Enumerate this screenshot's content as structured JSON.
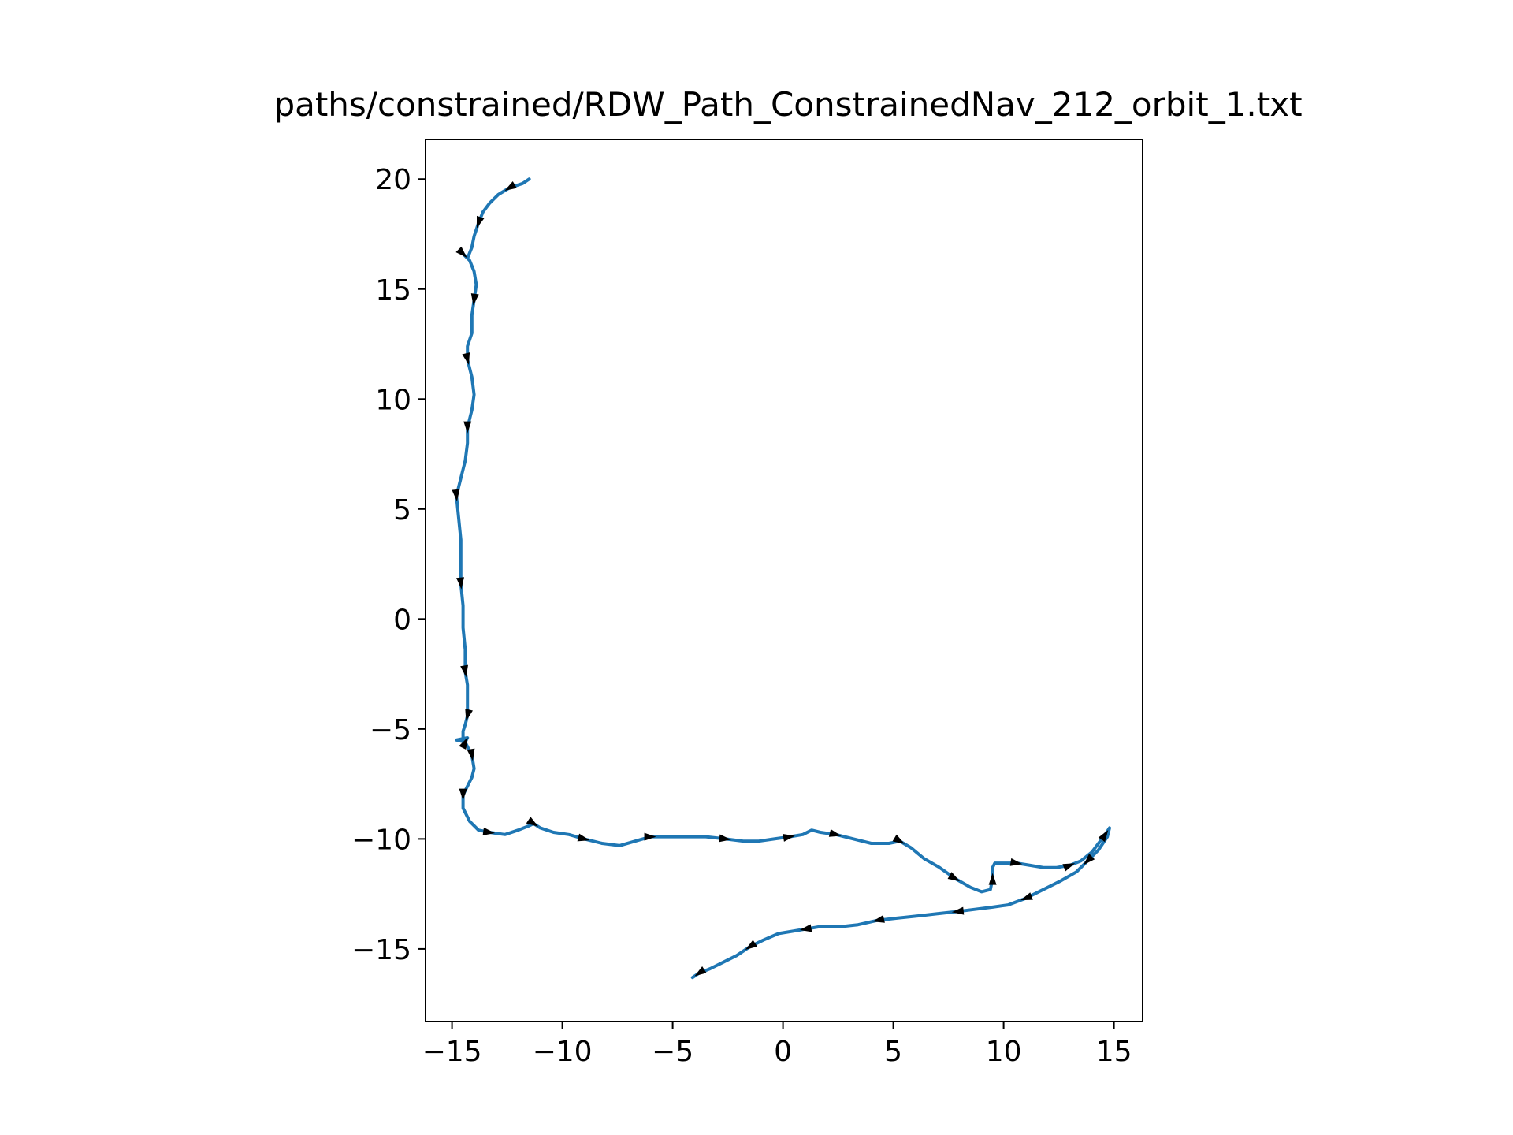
{
  "chart_data": {
    "type": "line",
    "title": "paths/constrained/RDW_Path_ConstrainedNav_212_orbit_1.txt",
    "xlabel": "",
    "ylabel": "",
    "xlim": [
      -16.2,
      16.3
    ],
    "ylim": [
      -18.3,
      21.8
    ],
    "xticks": [
      -15,
      -10,
      -5,
      0,
      5,
      10,
      15
    ],
    "yticks": [
      -15,
      -10,
      -5,
      0,
      5,
      10,
      15,
      20
    ],
    "grid": false,
    "legend": "none",
    "colors": {
      "line": "#1f77b4",
      "arrow": "#000000",
      "axes": "#000000"
    },
    "series": [
      {
        "x": [
          -11.5,
          -11.8,
          -12.4,
          -12.9,
          -13.3,
          -13.6,
          -13.8,
          -14.0,
          -14.1,
          -14.3,
          -14.5,
          -14.2,
          -14.0,
          -13.9,
          -14.0,
          -14.1,
          -14.1,
          -14.3,
          -14.3,
          -14.1,
          -14.0,
          -14.1,
          -14.3,
          -14.3,
          -14.4,
          -14.6,
          -14.8,
          -14.7,
          -14.6,
          -14.6,
          -14.6,
          -14.5,
          -14.5,
          -14.4,
          -14.4,
          -14.3,
          -14.3,
          -14.3,
          -14.3,
          -14.4,
          -14.5,
          -14.5,
          -14.4,
          -14.3,
          -14.8,
          -14.4,
          -14.1,
          -14.0,
          -14.1,
          -14.3,
          -14.5,
          -14.5,
          -14.2,
          -13.8,
          -13.3,
          -12.6,
          -12.0,
          -11.5,
          -11.3,
          -11.0,
          -10.4,
          -9.7,
          -9.0,
          -8.2,
          -7.4,
          -6.7,
          -6.0,
          -5.2,
          -4.3,
          -3.5,
          -2.6,
          -1.8,
          -1.1,
          -0.4,
          0.3,
          0.9,
          1.3,
          1.7,
          2.4,
          3.2,
          4.0,
          4.8,
          5.3,
          5.8,
          6.4,
          7.1,
          7.8,
          8.5,
          9.0,
          9.4,
          9.5,
          9.5,
          9.6,
          10.0,
          10.6,
          11.2,
          11.8,
          12.4,
          13.0,
          13.5,
          14.0,
          14.3,
          14.6,
          14.8,
          14.7,
          14.3,
          13.8,
          13.3,
          12.6,
          11.8,
          11.0,
          10.2,
          9.5,
          8.7,
          7.9,
          7.0,
          6.1,
          5.2,
          4.3,
          3.4,
          2.5,
          1.6,
          1.0,
          0.4,
          -0.2,
          -0.9,
          -1.5,
          -2.1,
          -2.7,
          -3.3,
          -3.8,
          -4.1
        ],
        "y": [
          20.0,
          19.8,
          19.6,
          19.3,
          18.9,
          18.5,
          18.0,
          17.4,
          16.9,
          16.4,
          16.6,
          16.3,
          15.8,
          15.2,
          14.5,
          13.8,
          13.0,
          12.4,
          11.8,
          11.0,
          10.2,
          9.5,
          8.7,
          8.0,
          7.2,
          6.4,
          5.6,
          4.6,
          3.6,
          2.6,
          1.6,
          0.6,
          -0.4,
          -1.4,
          -2.4,
          -3.0,
          -3.6,
          -4.0,
          -4.4,
          -4.8,
          -5.1,
          -5.4,
          -5.6,
          -5.4,
          -5.5,
          -5.6,
          -6.2,
          -6.8,
          -7.2,
          -7.6,
          -8.0,
          -8.6,
          -9.2,
          -9.6,
          -9.7,
          -9.8,
          -9.6,
          -9.4,
          -9.3,
          -9.5,
          -9.7,
          -9.8,
          -10.0,
          -10.2,
          -10.3,
          -10.1,
          -9.9,
          -9.9,
          -9.9,
          -9.9,
          -10.0,
          -10.1,
          -10.1,
          -10.0,
          -9.9,
          -9.8,
          -9.6,
          -9.7,
          -9.8,
          -10.0,
          -10.2,
          -10.2,
          -10.1,
          -10.4,
          -10.9,
          -11.3,
          -11.8,
          -12.2,
          -12.4,
          -12.3,
          -11.8,
          -11.3,
          -11.1,
          -11.1,
          -11.1,
          -11.2,
          -11.3,
          -11.3,
          -11.2,
          -11.0,
          -10.6,
          -10.2,
          -9.8,
          -9.5,
          -9.9,
          -10.5,
          -11.0,
          -11.5,
          -11.9,
          -12.3,
          -12.7,
          -13.0,
          -13.1,
          -13.2,
          -13.3,
          -13.4,
          -13.5,
          -13.6,
          -13.7,
          -13.9,
          -14.0,
          -14.0,
          -14.1,
          -14.2,
          -14.3,
          -14.6,
          -14.9,
          -15.3,
          -15.6,
          -15.9,
          -16.1,
          -16.3
        ]
      }
    ]
  }
}
